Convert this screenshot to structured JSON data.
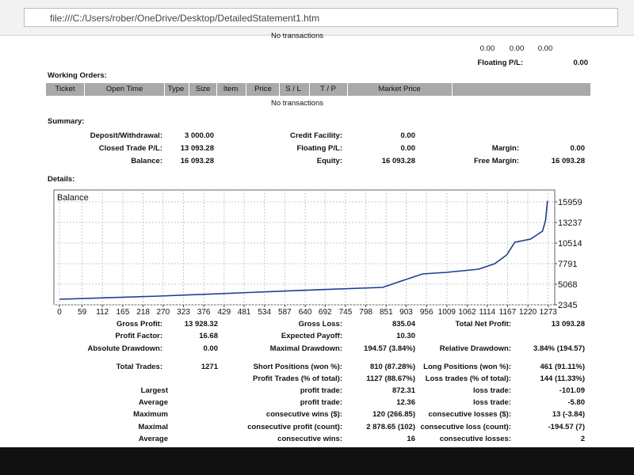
{
  "browser": {
    "url": "file:///C:/Users/rober/OneDrive/Desktop/DetailedStatement1.htm"
  },
  "top": {
    "note": "No transactions",
    "values": [
      "0.00",
      "0.00",
      "0.00"
    ],
    "floating_label": "Floating P/L:",
    "floating_value": "0.00"
  },
  "working_orders": {
    "title": "Working Orders:",
    "columns": [
      "Ticket",
      "Open Time",
      "Type",
      "Size",
      "Item",
      "Price",
      "S / L",
      "T / P",
      "Market Price"
    ],
    "note": "No transactions"
  },
  "summary": {
    "title": "Summary:",
    "rows": [
      [
        [
          "Deposit/Withdrawal:",
          "3 000.00"
        ],
        [
          "Credit Facility:",
          "0.00"
        ],
        null
      ],
      [
        [
          "Closed Trade P/L:",
          "13 093.28"
        ],
        [
          "Floating P/L:",
          "0.00"
        ],
        [
          "Margin:",
          "0.00"
        ]
      ],
      [
        [
          "Balance:",
          "16 093.28"
        ],
        [
          "Equity:",
          "16 093.28"
        ],
        [
          "Free Margin:",
          "16 093.28"
        ]
      ]
    ]
  },
  "details": {
    "title": "Details:"
  },
  "chart_data": {
    "type": "line",
    "title": "Balance",
    "color": "#1f3a93",
    "x": [
      0,
      260,
      468,
      676,
      842,
      884,
      946,
      1009,
      1092,
      1134,
      1165,
      1186,
      1227,
      1258,
      1266,
      1271
    ],
    "values": [
      3080,
      3500,
      3920,
      4340,
      4650,
      5380,
      6430,
      6640,
      7060,
      7790,
      8940,
      10620,
      11040,
      12080,
      13500,
      16093
    ],
    "xlim": [
      0,
      1290
    ],
    "ylim": [
      2345,
      17530
    ],
    "xticks": [
      0,
      59,
      112,
      165,
      218,
      270,
      323,
      376,
      429,
      481,
      534,
      587,
      640,
      692,
      745,
      798,
      851,
      903,
      956,
      1009,
      1062,
      1114,
      1167,
      1220,
      1273
    ],
    "yticks": [
      2345,
      5068,
      7791,
      10514,
      13237,
      15959
    ],
    "grid": true
  },
  "stats": {
    "rows": [
      [
        [
          "Gross Profit:",
          "13 928.32"
        ],
        [
          "Gross Loss:",
          "835.04"
        ],
        [
          "Total Net Profit:",
          "13 093.28"
        ]
      ],
      [
        [
          "Profit Factor:",
          "16.68"
        ],
        [
          "Expected Payoff:",
          "10.30"
        ],
        null
      ],
      [
        [
          "Absolute Drawdown:",
          "0.00"
        ],
        [
          "Maximal Drawdown:",
          "194.57 (3.84%)"
        ],
        [
          "Relative Drawdown:",
          "3.84% (194.57)"
        ]
      ],
      [
        [
          "Total Trades:",
          "1271"
        ],
        [
          "Short Positions (won %):",
          "810 (87.28%)"
        ],
        [
          "Long Positions (won %):",
          "461 (91.11%)"
        ]
      ],
      [
        null,
        [
          "Profit Trades (% of total):",
          "1127 (88.67%)"
        ],
        [
          "Loss trades (% of total):",
          "144 (11.33%)"
        ]
      ],
      [
        [
          "Largest"
        ],
        [
          "profit trade:",
          "872.31"
        ],
        [
          "loss trade:",
          "-101.09"
        ]
      ],
      [
        [
          "Average"
        ],
        [
          "profit trade:",
          "12.36"
        ],
        [
          "loss trade:",
          "-5.80"
        ]
      ],
      [
        [
          "Maximum"
        ],
        [
          "consecutive wins ($):",
          "120 (266.85)"
        ],
        [
          "consecutive losses ($):",
          "13 (-3.84)"
        ]
      ],
      [
        [
          "Maximal"
        ],
        [
          "consecutive profit (count):",
          "2 878.65 (102)"
        ],
        [
          "consecutive loss (count):",
          "-194.57 (7)"
        ]
      ],
      [
        [
          "Average"
        ],
        [
          "consecutive wins:",
          "16"
        ],
        [
          "consecutive losses:",
          "2"
        ]
      ]
    ]
  }
}
